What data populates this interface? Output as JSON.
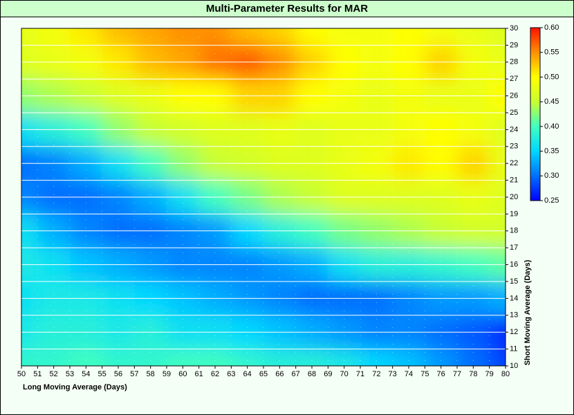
{
  "chart_data": {
    "type": "heatmap",
    "title": "Multi-Parameter Results for MAR",
    "xlabel": "Long Moving Average (Days)",
    "ylabel": "Short Moving Average (Days)",
    "x": [
      50,
      52,
      54,
      56,
      58,
      60,
      62,
      64,
      66,
      68,
      70,
      72,
      74,
      76,
      78,
      80
    ],
    "y": [
      10,
      12,
      14,
      16,
      18,
      20,
      22,
      24,
      26,
      28,
      30
    ],
    "values": [
      [
        0.39,
        0.39,
        0.4,
        0.39,
        0.39,
        0.4,
        0.4,
        0.39,
        0.38,
        0.38,
        0.37,
        0.35,
        0.34,
        0.32,
        0.3,
        0.28
      ],
      [
        0.37,
        0.38,
        0.38,
        0.37,
        0.38,
        0.36,
        0.36,
        0.35,
        0.34,
        0.33,
        0.32,
        0.31,
        0.31,
        0.3,
        0.29,
        0.27
      ],
      [
        0.36,
        0.37,
        0.37,
        0.36,
        0.35,
        0.34,
        0.33,
        0.32,
        0.31,
        0.3,
        0.3,
        0.3,
        0.31,
        0.32,
        0.32,
        0.33
      ],
      [
        0.37,
        0.36,
        0.34,
        0.33,
        0.32,
        0.31,
        0.31,
        0.31,
        0.32,
        0.33,
        0.36,
        0.38,
        0.38,
        0.39,
        0.4,
        0.41
      ],
      [
        0.36,
        0.33,
        0.31,
        0.3,
        0.3,
        0.31,
        0.32,
        0.35,
        0.38,
        0.4,
        0.42,
        0.43,
        0.44,
        0.45,
        0.46,
        0.46
      ],
      [
        0.31,
        0.3,
        0.3,
        0.31,
        0.33,
        0.36,
        0.4,
        0.42,
        0.44,
        0.45,
        0.47,
        0.47,
        0.47,
        0.47,
        0.48,
        0.47
      ],
      [
        0.3,
        0.31,
        0.33,
        0.36,
        0.4,
        0.43,
        0.45,
        0.46,
        0.47,
        0.47,
        0.48,
        0.49,
        0.51,
        0.5,
        0.52,
        0.48
      ],
      [
        0.36,
        0.38,
        0.4,
        0.43,
        0.45,
        0.46,
        0.47,
        0.47,
        0.48,
        0.47,
        0.48,
        0.48,
        0.49,
        0.5,
        0.49,
        0.47
      ],
      [
        0.43,
        0.44,
        0.45,
        0.47,
        0.48,
        0.5,
        0.5,
        0.52,
        0.52,
        0.5,
        0.49,
        0.48,
        0.49,
        0.48,
        0.48,
        0.5
      ],
      [
        0.47,
        0.48,
        0.49,
        0.51,
        0.53,
        0.54,
        0.56,
        0.57,
        0.55,
        0.52,
        0.5,
        0.49,
        0.5,
        0.52,
        0.49,
        0.48
      ],
      [
        0.48,
        0.49,
        0.51,
        0.53,
        0.54,
        0.55,
        0.55,
        0.53,
        0.52,
        0.5,
        0.49,
        0.49,
        0.5,
        0.49,
        0.48,
        0.47
      ]
    ],
    "xlim": [
      50,
      80
    ],
    "ylim": [
      10,
      30
    ],
    "xticks": [
      50,
      51,
      52,
      53,
      54,
      55,
      56,
      57,
      58,
      59,
      60,
      61,
      62,
      63,
      64,
      65,
      66,
      67,
      68,
      69,
      70,
      71,
      72,
      73,
      74,
      75,
      76,
      77,
      78,
      79,
      80
    ],
    "yticks": [
      10,
      11,
      12,
      13,
      14,
      15,
      16,
      17,
      18,
      19,
      20,
      21,
      22,
      23,
      24,
      25,
      26,
      27,
      28,
      29,
      30
    ],
    "zlim": [
      0.25,
      0.6
    ],
    "zticks": [
      0.25,
      {
        "value": 0.3,
        "label": "0.30"
      },
      0.35,
      {
        "value": 0.4,
        "label": "0.40"
      },
      0.45,
      {
        "value": 0.5,
        "label": "0.50"
      },
      0.55,
      {
        "value": 0.6,
        "label": "0.60"
      }
    ],
    "colorscale": [
      "#0000ff",
      "#0070ff",
      "#00d8ff",
      "#40ffc0",
      "#c8ff30",
      "#ffff00",
      "#ff9000",
      "#ff1000"
    ],
    "grid": true
  }
}
